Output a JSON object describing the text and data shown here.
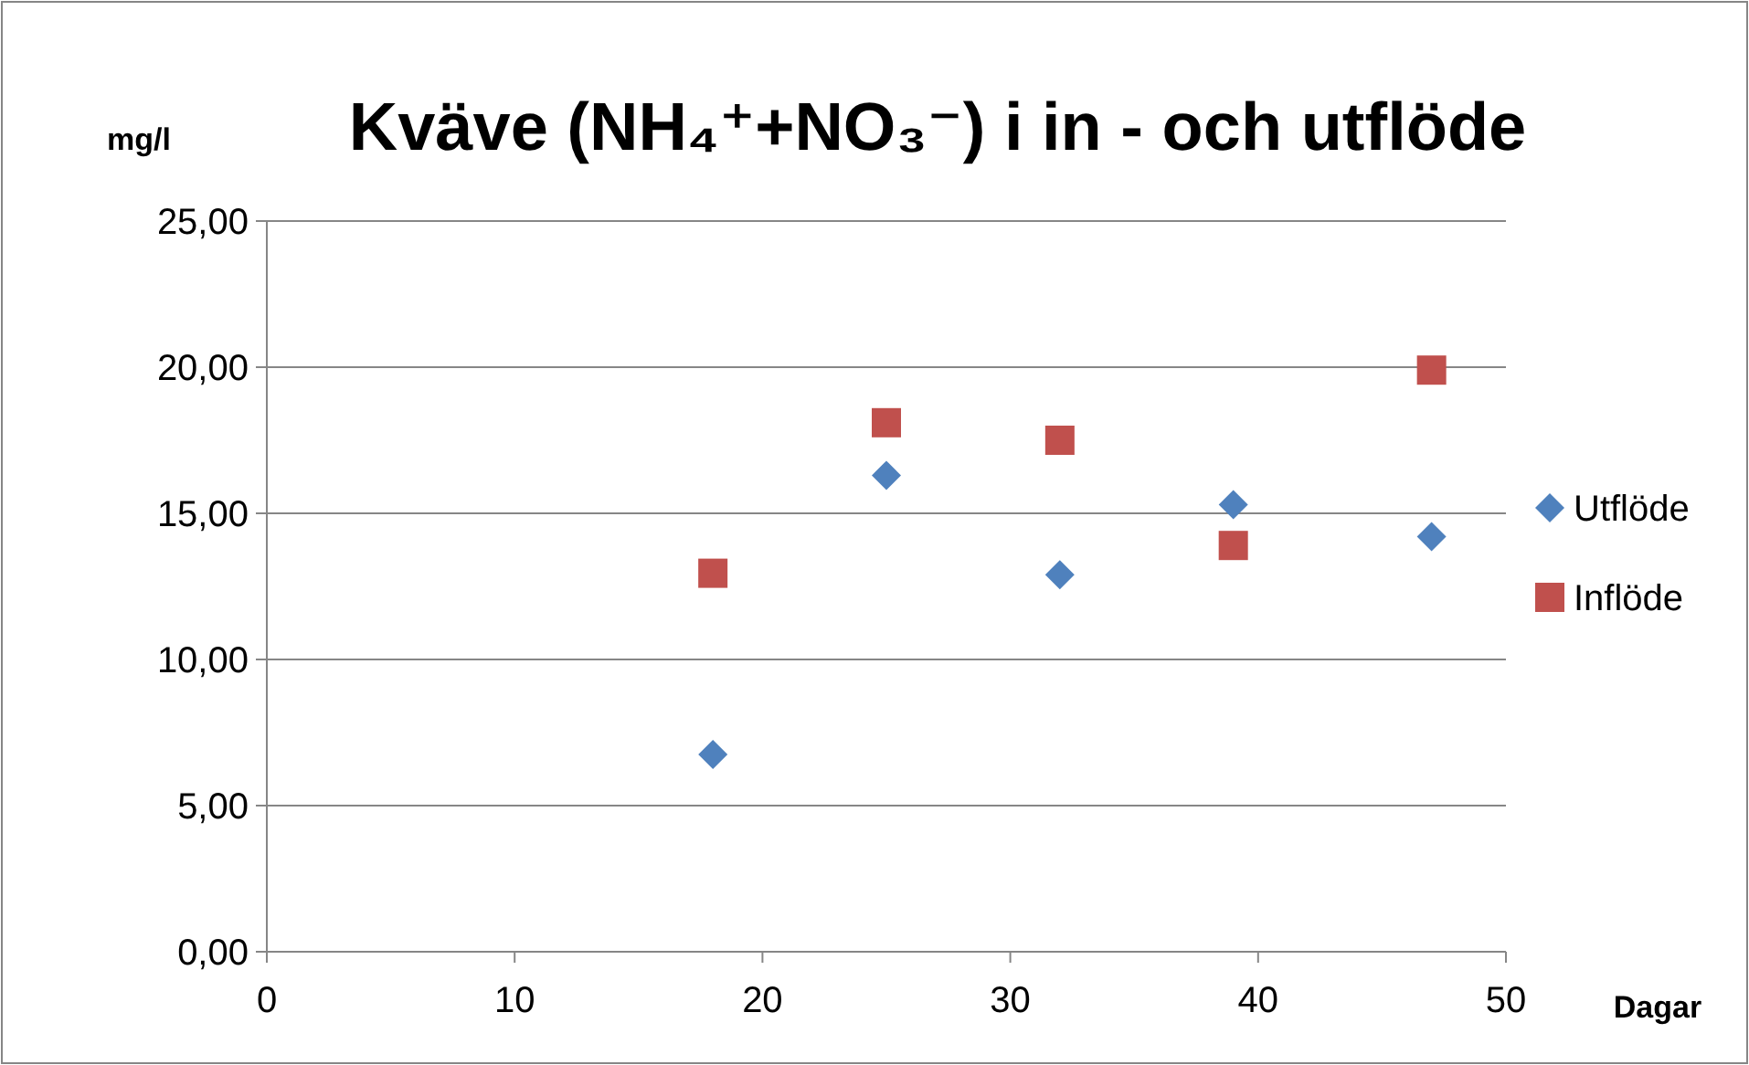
{
  "chart_data": {
    "type": "scatter",
    "title": "Kväve (NH₄⁺+NO₃⁻) i in - och utflöde",
    "ylabel": "mg/l",
    "xlabel": "Dagar",
    "series": [
      {
        "name": "Utflöde",
        "color": "#4f81bd",
        "marker": "diamond",
        "x": [
          18,
          25,
          32,
          39,
          47
        ],
        "values": [
          6.75,
          16.3,
          12.9,
          15.3,
          14.2
        ]
      },
      {
        "name": "Inflöde",
        "color": "#c0504d",
        "marker": "square",
        "x": [
          18,
          25,
          32,
          39,
          47
        ],
        "values": [
          12.95,
          18.1,
          17.5,
          13.9,
          19.9
        ]
      }
    ],
    "xlim": [
      0,
      50
    ],
    "xticks": [
      0,
      10,
      20,
      30,
      40,
      50
    ],
    "ylim": [
      0,
      25
    ],
    "yticks": [
      {
        "value": 0,
        "label": "0,00"
      },
      {
        "value": 5,
        "label": "5,00"
      },
      {
        "value": 10,
        "label": "10,00"
      },
      {
        "value": 15,
        "label": "15,00"
      },
      {
        "value": 20,
        "label": "20,00"
      },
      {
        "value": 25,
        "label": "25,00"
      }
    ],
    "grid": "y",
    "legend": "right"
  }
}
